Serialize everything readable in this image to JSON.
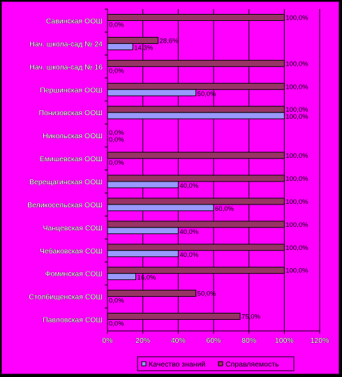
{
  "chart_data": {
    "type": "bar",
    "orientation": "horizontal",
    "categories": [
      "Савинская ООШ",
      "Нач. школа-сад № 24",
      "Нач. школа-сад № 16",
      "Першинская ООШ",
      "Понизовская ООШ",
      "Никольская ООШ",
      "Емишевская ООШ",
      "Верещагинская ООШ",
      "Великосельская ООШ",
      "Чанцевская СОШ",
      "Чебаковская СОШ",
      "Фоминская СОШ",
      "Столбищенская СОШ",
      "Павловская СОШ"
    ],
    "series": [
      {
        "name": "Качество знаний",
        "color": "#9999ff",
        "values": [
          0,
          14.3,
          0,
          50,
          100,
          0,
          0,
          40,
          60,
          40,
          40,
          16,
          0,
          0
        ],
        "labels": [
          "0,0%",
          "14,3%",
          "0,0%",
          "50,0%",
          "100,0%",
          "0,0%",
          "0,0%",
          "40,0%",
          "60,0%",
          "40,0%",
          "40,0%",
          "16,0%",
          "0,0%",
          "0,0%"
        ]
      },
      {
        "name": "Справляемость",
        "color": "#993366",
        "values": [
          100,
          28.6,
          100,
          100,
          100,
          0,
          100,
          100,
          100,
          100,
          100,
          100,
          50,
          75
        ],
        "labels": [
          "100,0%",
          "28,6%",
          "100,0%",
          "100,0%",
          "100,0%",
          "0,0%",
          "100,0%",
          "100,0%",
          "100,0%",
          "100,0%",
          "100,0%",
          "100,0%",
          "50,0%",
          "75,0%"
        ]
      }
    ],
    "xlim": [
      0,
      120
    ],
    "xticks": [
      "0%",
      "20%",
      "40%",
      "60%",
      "80%",
      "100%",
      "120%"
    ],
    "xlabel": "",
    "ylabel": "",
    "title": "",
    "grid": true,
    "legend_position": "bottom"
  },
  "colors": {
    "background": "#ff00ff",
    "grid": "#000000"
  }
}
